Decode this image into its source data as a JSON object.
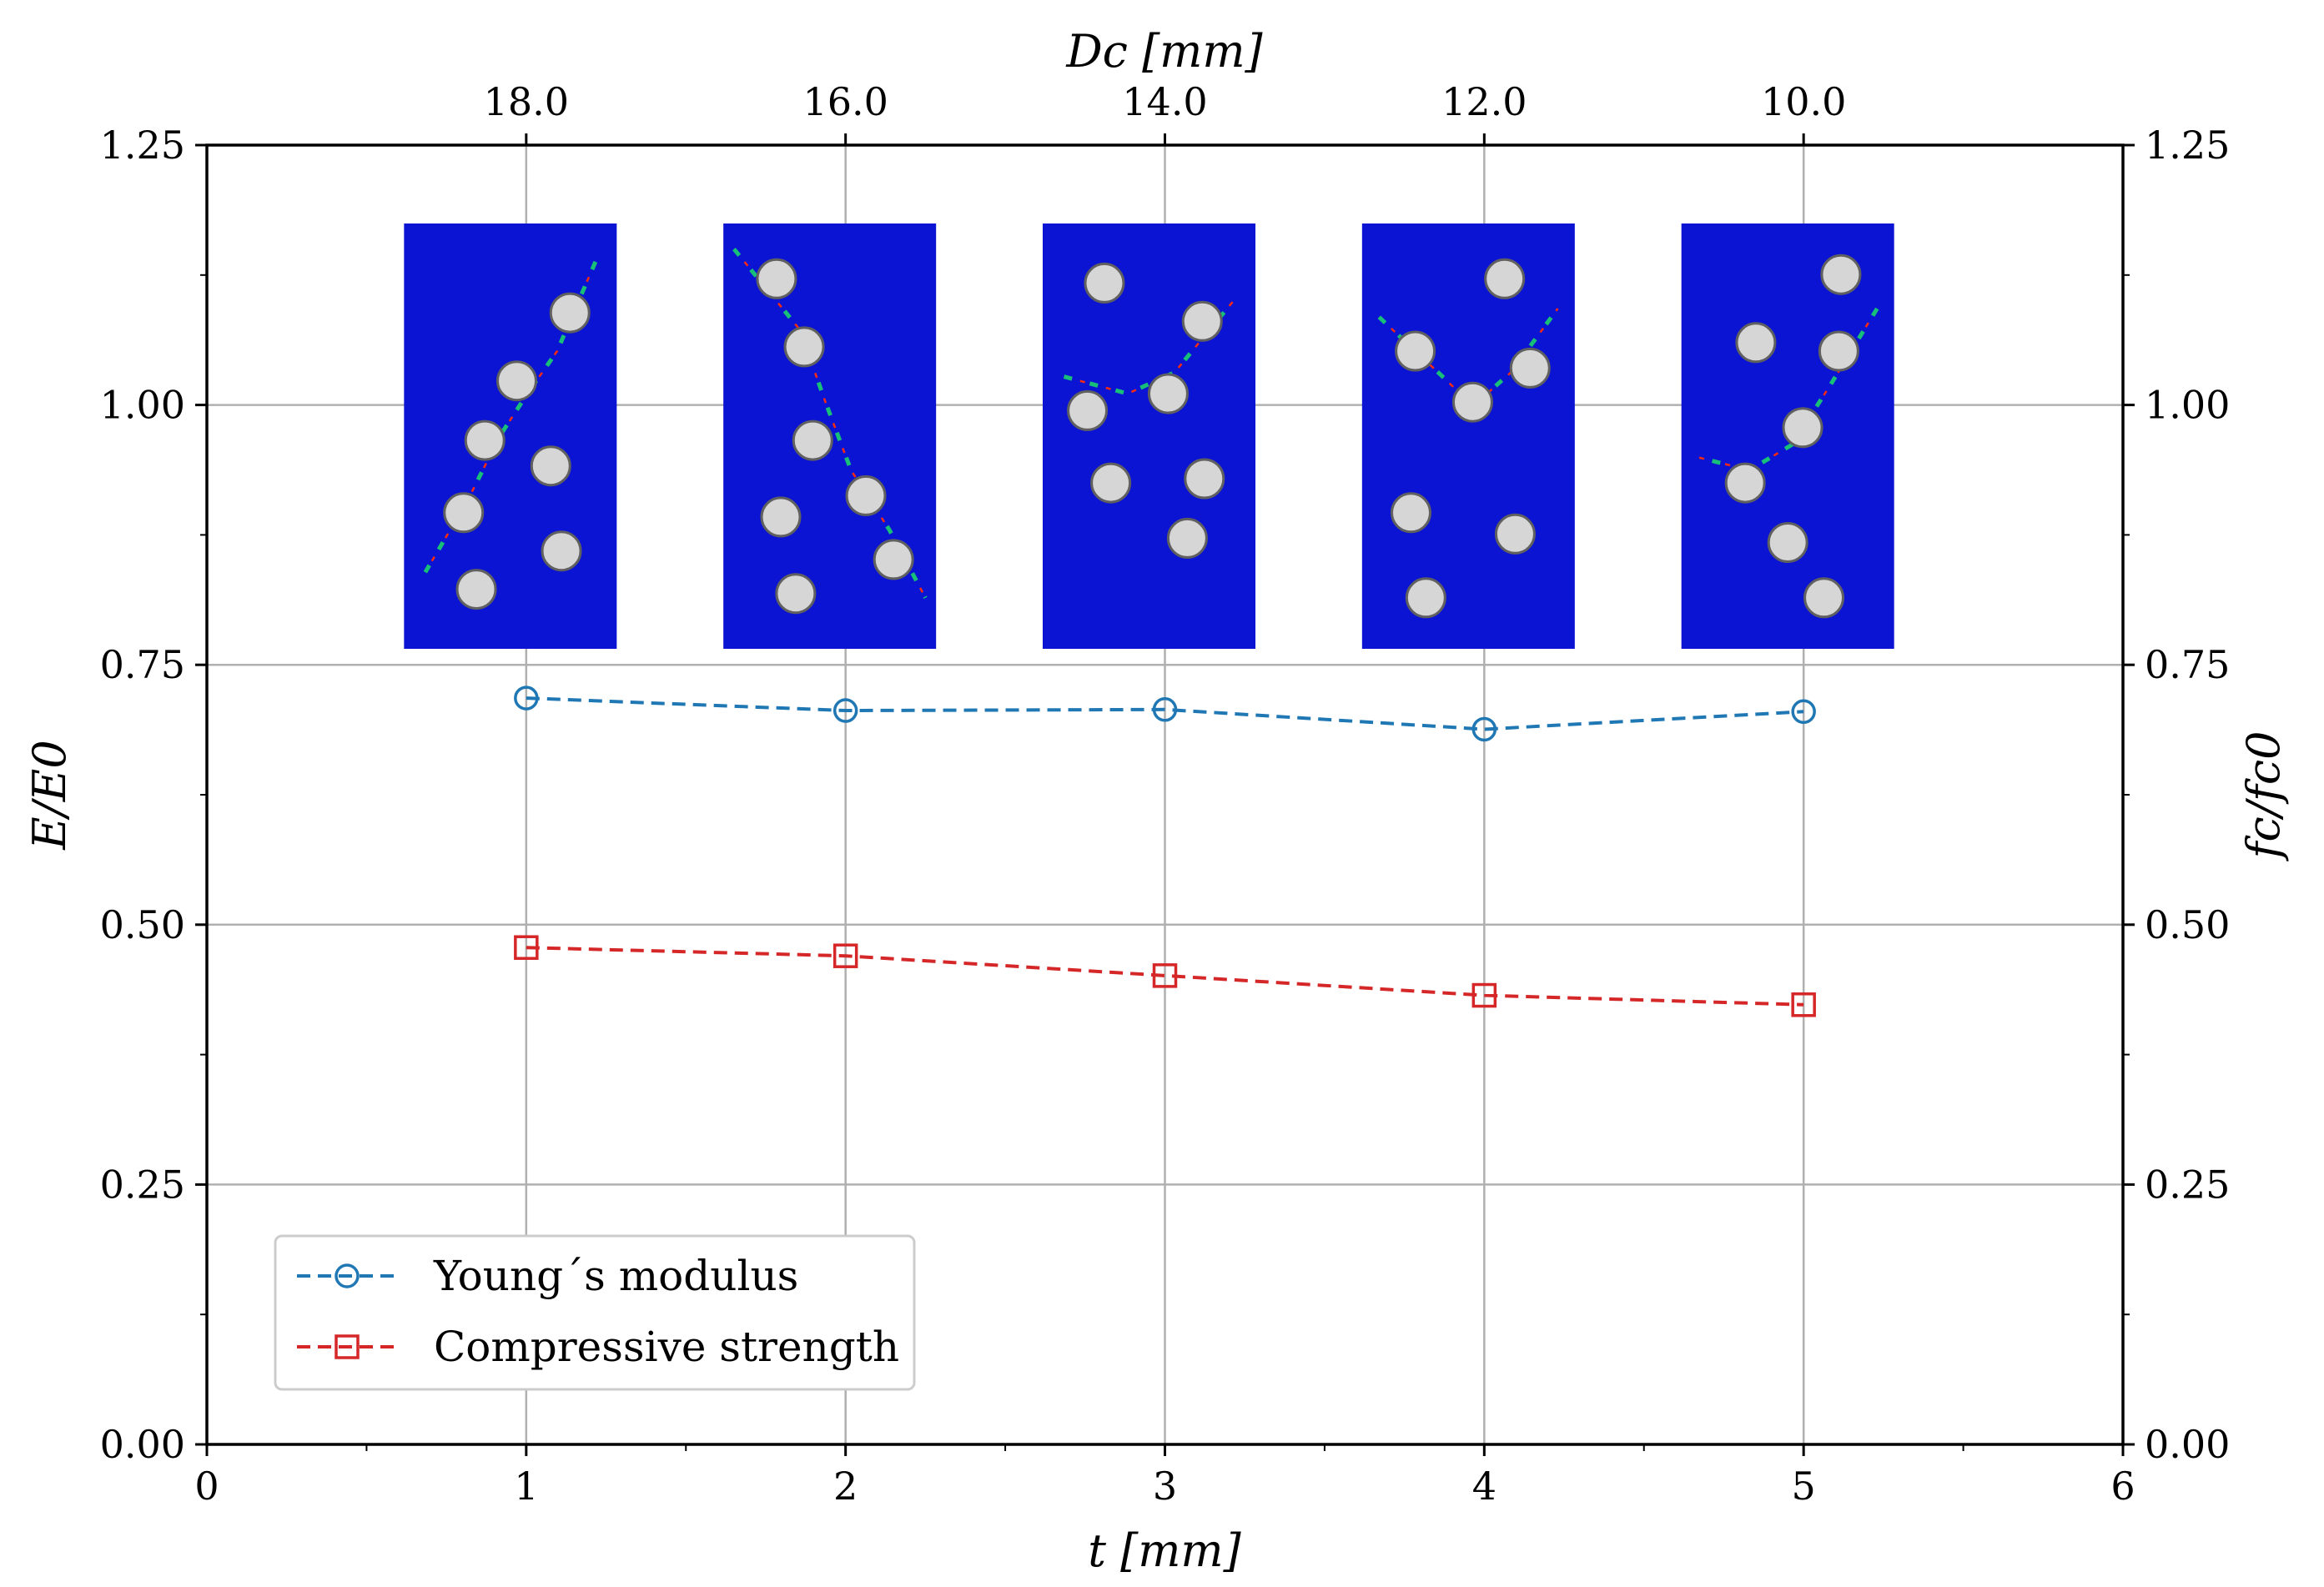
{
  "chart_data": {
    "type": "line",
    "x_label": "t [mm]",
    "x_top_label": "Dc [mm]",
    "y_label": "E/E0",
    "y_right_label": "fc/fc0",
    "xlim": [
      0,
      6
    ],
    "ylim": [
      0,
      1.25
    ],
    "x_ticks": [
      "0",
      "1",
      "2",
      "3",
      "4",
      "5",
      "6"
    ],
    "x_top_ticks": [
      "18.0",
      "16.0",
      "14.0",
      "12.0",
      "10.0"
    ],
    "y_ticks": [
      "0.00",
      "0.25",
      "0.50",
      "0.75",
      "1.00",
      "1.25"
    ],
    "y_right_ticks": [
      "0.00",
      "0.25",
      "0.50",
      "0.75",
      "1.00",
      "1.25"
    ],
    "grid": true,
    "x": [
      1,
      2,
      3,
      4,
      5
    ],
    "series": [
      {
        "name": "Young´s modulus",
        "values": [
          0.718,
          0.706,
          0.707,
          0.688,
          0.705
        ],
        "color": "#1f77b4",
        "marker": "circle",
        "linestyle": "dashed"
      },
      {
        "name": "Compressive strength",
        "values": [
          0.478,
          0.47,
          0.451,
          0.432,
          0.423
        ],
        "color": "#d62728",
        "marker": "square",
        "linestyle": "dashed"
      }
    ],
    "legend_position": "lower-left",
    "inset_images": {
      "count": 5,
      "color": "#0a14d2",
      "description_icon": "crack-pattern-simulation-icon"
    }
  }
}
